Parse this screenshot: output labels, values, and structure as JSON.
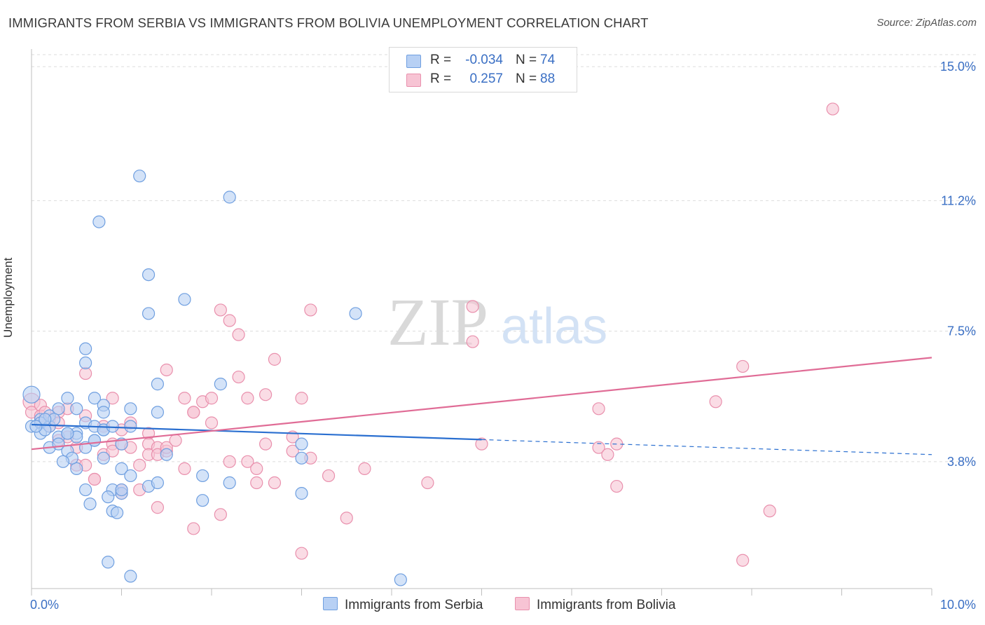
{
  "title": "IMMIGRANTS FROM SERBIA VS IMMIGRANTS FROM BOLIVIA UNEMPLOYMENT CORRELATION CHART",
  "source": "Source: ZipAtlas.com",
  "watermark": {
    "zip": "ZIP",
    "atlas": "atlas"
  },
  "colors": {
    "serbia_fill": "#b7d0f4",
    "serbia_stroke": "#6f9fe0",
    "serbia_line": "#2a6fd0",
    "bolivia_fill": "#f7c4d4",
    "bolivia_stroke": "#e990ad",
    "bolivia_line": "#e06c96",
    "tick_label": "#3a6fc4",
    "grid": "#dcdcdc"
  },
  "legend": {
    "rows": [
      {
        "r_label": "R =",
        "r_value": "-0.034",
        "n_label": "N =",
        "n_value": "74"
      },
      {
        "r_label": "R =",
        "r_value": "0.257",
        "n_label": "N =",
        "n_value": "88"
      }
    ]
  },
  "bottom_legend": {
    "serbia": "Immigrants from Serbia",
    "bolivia": "Immigrants from Bolivia"
  },
  "chart_data": {
    "type": "scatter",
    "title": "IMMIGRANTS FROM SERBIA VS IMMIGRANTS FROM BOLIVIA UNEMPLOYMENT CORRELATION CHART",
    "xlabel": "",
    "ylabel": "Unemployment",
    "xlim": [
      0,
      10
    ],
    "ylim": [
      0.2,
      15.5
    ],
    "x_tick_labels": [
      {
        "value": 0,
        "label": "0.0%"
      },
      {
        "value": 10,
        "label": "10.0%"
      }
    ],
    "y_tick_labels": [
      {
        "value": 15.0,
        "label": "15.0%"
      },
      {
        "value": 11.2,
        "label": "11.2%"
      },
      {
        "value": 7.5,
        "label": "7.5%"
      },
      {
        "value": 3.8,
        "label": "3.8%"
      }
    ],
    "series": [
      {
        "name": "Immigrants from Serbia",
        "r": -0.034,
        "n": 74,
        "trend": {
          "x0": 0,
          "y0": 4.85,
          "x1": 10,
          "y1": 4.0,
          "solid_until_x": 5
        },
        "points": [
          [
            0.0,
            5.7
          ],
          [
            0.0,
            4.8
          ],
          [
            0.1,
            5.0
          ],
          [
            0.1,
            4.9
          ],
          [
            0.1,
            4.6
          ],
          [
            0.2,
            4.8
          ],
          [
            0.2,
            5.1
          ],
          [
            0.2,
            4.2
          ],
          [
            0.3,
            4.5
          ],
          [
            0.3,
            4.3
          ],
          [
            0.3,
            5.3
          ],
          [
            0.4,
            4.6
          ],
          [
            0.4,
            4.1
          ],
          [
            0.4,
            5.6
          ],
          [
            0.5,
            4.6
          ],
          [
            0.5,
            5.3
          ],
          [
            0.5,
            3.6
          ],
          [
            0.6,
            7.0
          ],
          [
            0.6,
            6.6
          ],
          [
            0.6,
            4.9
          ],
          [
            0.6,
            3.0
          ],
          [
            0.6,
            4.2
          ],
          [
            0.7,
            4.8
          ],
          [
            0.7,
            4.4
          ],
          [
            0.7,
            5.6
          ],
          [
            0.8,
            4.7
          ],
          [
            0.8,
            5.4
          ],
          [
            0.8,
            5.2
          ],
          [
            0.8,
            4.7
          ],
          [
            0.8,
            3.9
          ],
          [
            0.9,
            4.8
          ],
          [
            0.9,
            2.4
          ],
          [
            0.9,
            3.0
          ],
          [
            1.0,
            2.9
          ],
          [
            1.0,
            4.3
          ],
          [
            1.0,
            3.6
          ],
          [
            1.1,
            5.3
          ],
          [
            1.1,
            4.8
          ],
          [
            1.1,
            3.4
          ],
          [
            1.2,
            11.9
          ],
          [
            1.3,
            9.1
          ],
          [
            1.3,
            3.1
          ],
          [
            1.3,
            8.0
          ],
          [
            1.4,
            6.0
          ],
          [
            1.4,
            5.2
          ],
          [
            1.4,
            3.2
          ],
          [
            1.5,
            4.0
          ],
          [
            1.7,
            8.4
          ],
          [
            1.9,
            2.7
          ],
          [
            1.9,
            3.4
          ],
          [
            2.1,
            6.0
          ],
          [
            2.2,
            3.2
          ],
          [
            2.2,
            11.3
          ],
          [
            0.75,
            10.6
          ],
          [
            0.45,
            3.9
          ],
          [
            0.35,
            3.8
          ],
          [
            0.15,
            4.7
          ],
          [
            0.25,
            5.0
          ],
          [
            1.0,
            3.0
          ],
          [
            0.65,
            2.6
          ],
          [
            0.85,
            2.8
          ],
          [
            0.95,
            2.35
          ],
          [
            0.85,
            0.95
          ],
          [
            1.1,
            0.55
          ],
          [
            3.0,
            4.3
          ],
          [
            3.0,
            3.9
          ],
          [
            3.0,
            2.9
          ],
          [
            3.6,
            8.0
          ],
          [
            4.1,
            0.45
          ],
          [
            0.5,
            4.5
          ],
          [
            0.05,
            4.8
          ],
          [
            0.15,
            5.0
          ],
          [
            0.7,
            4.4
          ],
          [
            0.4,
            4.6
          ]
        ]
      },
      {
        "name": "Immigrants from Bolivia",
        "r": 0.257,
        "n": 88,
        "trend": {
          "x0": 0,
          "y0": 4.15,
          "x1": 10,
          "y1": 6.75,
          "solid_until_x": 10
        },
        "points": [
          [
            0.0,
            5.5
          ],
          [
            0.0,
            5.2
          ],
          [
            0.1,
            4.9
          ],
          [
            0.1,
            5.1
          ],
          [
            0.1,
            5.4
          ],
          [
            0.2,
            5.0
          ],
          [
            0.2,
            4.8
          ],
          [
            0.3,
            4.4
          ],
          [
            0.3,
            5.2
          ],
          [
            0.4,
            4.5
          ],
          [
            0.4,
            5.3
          ],
          [
            0.5,
            4.2
          ],
          [
            0.5,
            3.7
          ],
          [
            0.6,
            5.1
          ],
          [
            0.6,
            6.3
          ],
          [
            0.6,
            3.7
          ],
          [
            0.7,
            3.3
          ],
          [
            0.7,
            3.3
          ],
          [
            0.8,
            4.8
          ],
          [
            0.8,
            4.0
          ],
          [
            0.9,
            4.3
          ],
          [
            0.9,
            4.1
          ],
          [
            0.9,
            5.6
          ],
          [
            1.0,
            4.3
          ],
          [
            1.0,
            4.7
          ],
          [
            1.0,
            3.0
          ],
          [
            1.1,
            4.9
          ],
          [
            1.1,
            4.2
          ],
          [
            1.2,
            3.7
          ],
          [
            1.2,
            3.0
          ],
          [
            1.3,
            4.6
          ],
          [
            1.3,
            4.3
          ],
          [
            1.3,
            4.0
          ],
          [
            1.4,
            4.2
          ],
          [
            1.4,
            4.0
          ],
          [
            1.4,
            2.5
          ],
          [
            1.5,
            4.1
          ],
          [
            1.5,
            4.2
          ],
          [
            1.5,
            6.4
          ],
          [
            1.6,
            4.4
          ],
          [
            1.7,
            5.6
          ],
          [
            1.7,
            3.6
          ],
          [
            1.8,
            5.2
          ],
          [
            1.8,
            5.2
          ],
          [
            1.8,
            1.9
          ],
          [
            1.9,
            5.5
          ],
          [
            2.0,
            5.6
          ],
          [
            2.0,
            4.9
          ],
          [
            2.1,
            8.1
          ],
          [
            2.1,
            2.3
          ],
          [
            2.2,
            7.8
          ],
          [
            2.2,
            3.8
          ],
          [
            2.3,
            6.2
          ],
          [
            2.3,
            7.4
          ],
          [
            2.4,
            5.6
          ],
          [
            2.4,
            3.8
          ],
          [
            2.5,
            3.6
          ],
          [
            2.5,
            3.2
          ],
          [
            2.6,
            5.7
          ],
          [
            2.6,
            4.3
          ],
          [
            2.7,
            6.7
          ],
          [
            2.7,
            3.2
          ],
          [
            2.9,
            4.5
          ],
          [
            2.9,
            4.1
          ],
          [
            3.0,
            1.2
          ],
          [
            3.0,
            5.6
          ],
          [
            3.1,
            8.1
          ],
          [
            3.1,
            3.9
          ],
          [
            3.3,
            3.4
          ],
          [
            3.5,
            2.2
          ],
          [
            3.7,
            3.6
          ],
          [
            4.4,
            3.2
          ],
          [
            4.9,
            8.2
          ],
          [
            4.9,
            7.2
          ],
          [
            5.0,
            4.3
          ],
          [
            6.3,
            5.3
          ],
          [
            6.3,
            4.2
          ],
          [
            6.4,
            4.0
          ],
          [
            6.5,
            3.1
          ],
          [
            6.5,
            4.3
          ],
          [
            7.6,
            5.5
          ],
          [
            7.9,
            6.5
          ],
          [
            7.9,
            1.0
          ],
          [
            8.2,
            2.4
          ],
          [
            8.9,
            13.8
          ],
          [
            1.0,
            2.9
          ],
          [
            0.3,
            4.9
          ],
          [
            0.15,
            5.2
          ]
        ]
      }
    ]
  }
}
